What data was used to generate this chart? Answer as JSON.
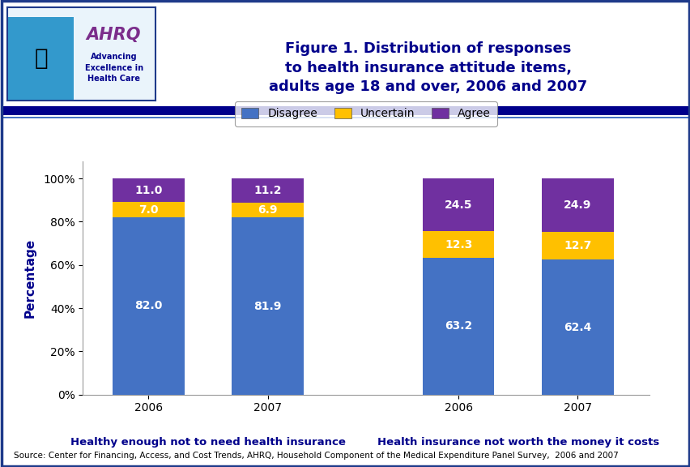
{
  "groups": [
    {
      "label": "Healthy enough not to need health insurance",
      "bars": [
        {
          "year": "2006",
          "disagree": 82.0,
          "uncertain": 7.0,
          "agree": 11.0
        },
        {
          "year": "2007",
          "disagree": 81.9,
          "uncertain": 6.9,
          "agree": 11.2
        }
      ]
    },
    {
      "label": "Health insurance not worth the money it costs",
      "bars": [
        {
          "year": "2006",
          "disagree": 63.2,
          "uncertain": 12.3,
          "agree": 24.5
        },
        {
          "year": "2007",
          "disagree": 62.4,
          "uncertain": 12.7,
          "agree": 24.9
        }
      ]
    }
  ],
  "colors": {
    "disagree": "#4472C4",
    "uncertain": "#FFC000",
    "agree": "#7030A0"
  },
  "ylabel": "Percentage",
  "yticks": [
    0,
    20,
    40,
    60,
    80,
    100
  ],
  "ytick_labels": [
    "0%",
    "20%",
    "40%",
    "60%",
    "80%",
    "100%"
  ],
  "legend_labels": [
    "Disagree",
    "Uncertain",
    "Agree"
  ],
  "title_line1": "Figure 1. Distribution of responses",
  "title_line2": "to health insurance attitude items,",
  "title_line3": "adults age 18 and over, 2006 and 2007",
  "source_text": "Source: Center for Financing, Access, and Cost Trends, AHRQ, Household Component of the Medical Expenditure Panel Survey,  2006 and 2007",
  "background_color": "#FFFFFF",
  "header_bar_color": "#00008B",
  "bar_width": 0.6,
  "text_color_white": "#FFFFFF",
  "title_color": "#00008B",
  "header_bg": "#EAF0FB",
  "header_border_color": "#1E3A8A",
  "outer_border_color": "#1E3A8A"
}
